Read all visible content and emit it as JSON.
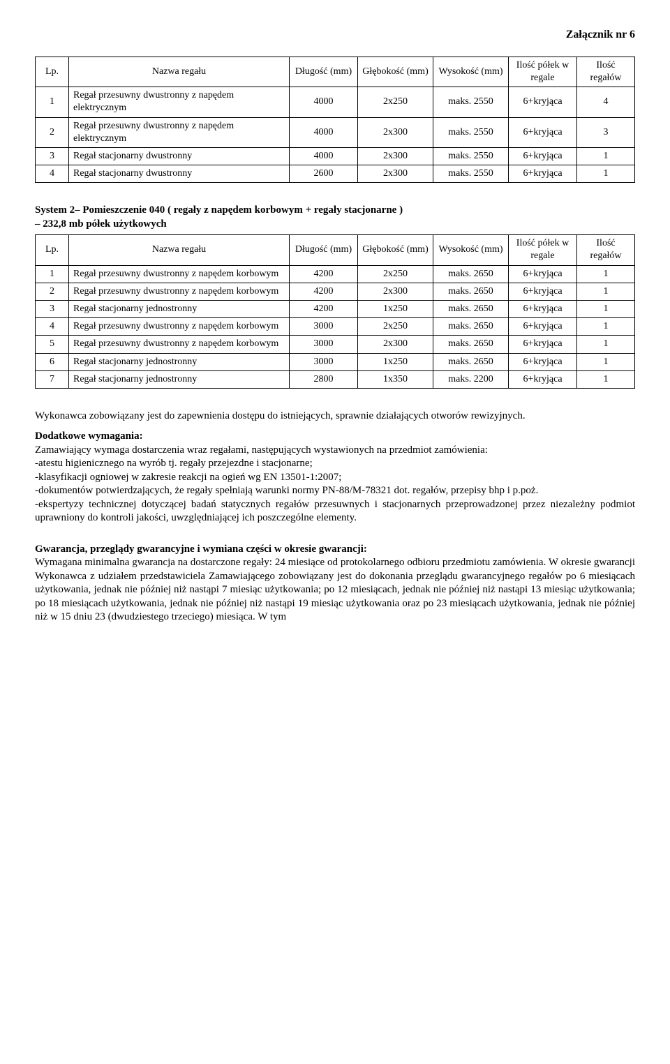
{
  "header": {
    "attachment": "Załącznik nr 6"
  },
  "table1": {
    "columns": [
      "Lp.",
      "Nazwa regału",
      "Długość (mm)",
      "Głębokość (mm)",
      "Wysokość (mm)",
      "Ilość półek w regale",
      "Ilość regałów"
    ],
    "rows": [
      [
        "1",
        "Regał przesuwny dwustronny z napędem elektrycznym",
        "4000",
        "2x250",
        "maks. 2550",
        "6+kryjąca",
        "4"
      ],
      [
        "2",
        "Regał przesuwny dwustronny z napędem elektrycznym",
        "4000",
        "2x300",
        "maks. 2550",
        "6+kryjąca",
        "3"
      ],
      [
        "3",
        "Regał stacjonarny dwustronny",
        "4000",
        "2x300",
        "maks. 2550",
        "6+kryjąca",
        "1"
      ],
      [
        "4",
        "Regał stacjonarny dwustronny",
        "2600",
        "2x300",
        "maks. 2550",
        "6+kryjąca",
        "1"
      ]
    ]
  },
  "section2_heading_line1": "System 2– Pomieszczenie 040 ( regały z napędem korbowym + regały stacjonarne )",
  "section2_heading_line2": "– 232,8 mb półek użytkowych",
  "table2": {
    "columns": [
      "Lp.",
      "Nazwa regału",
      "Długość (mm)",
      "Głębokość (mm)",
      "Wysokość (mm)",
      "Ilość półek w regale",
      "Ilość regałów"
    ],
    "rows": [
      [
        "1",
        "Regał przesuwny dwustronny z napędem korbowym",
        "4200",
        "2x250",
        "maks. 2650",
        "6+kryjąca",
        "1"
      ],
      [
        "2",
        "Regał przesuwny dwustronny z napędem korbowym",
        "4200",
        "2x300",
        "maks. 2650",
        "6+kryjąca",
        "1"
      ],
      [
        "3",
        "Regał stacjonarny jednostronny",
        "4200",
        "1x250",
        "maks. 2650",
        "6+kryjąca",
        "1"
      ],
      [
        "4",
        "Regał przesuwny dwustronny z napędem korbowym",
        "3000",
        "2x250",
        "maks. 2650",
        "6+kryjąca",
        "1"
      ],
      [
        "5",
        "Regał przesuwny dwustronny z napędem korbowym",
        "3000",
        "2x300",
        "maks. 2650",
        "6+kryjąca",
        "1"
      ],
      [
        "6",
        "Regał stacjonarny jednostronny",
        "3000",
        "1x250",
        "maks. 2650",
        "6+kryjąca",
        "1"
      ],
      [
        "7",
        "Regał stacjonarny jednostronny",
        "2800",
        "1x350",
        "maks. 2200",
        "6+kryjąca",
        "1"
      ]
    ]
  },
  "para_contractor": "Wykonawca zobowiązany jest do zapewnienia dostępu do istniejących, sprawnie działających otworów rewizyjnych.",
  "additional_heading": "Dodatkowe wymagania:",
  "additional_intro": "Zamawiający wymaga dostarczenia wraz regałami, następujących wystawionych na przedmiot zamówienia:",
  "additional_items": [
    "-atestu higienicznego na wyrób tj. regały przejezdne i stacjonarne;",
    "-klasyfikacji ogniowej w zakresie reakcji na ogień wg EN 13501-1:2007;",
    "-dokumentów potwierdzających, że regały spełniają warunki normy PN-88/M-78321 dot. regałów, przepisy bhp i p.poż.",
    "-ekspertyzy technicznej dotyczącej badań statycznych regałów przesuwnych i stacjonarnych przeprowadzonej przez niezależny podmiot uprawniony do kontroli jakości, uwzględniającej ich poszczególne elementy."
  ],
  "warranty_heading": "Gwarancja, przeglądy gwarancyjne i wymiana części w okresie gwarancji:",
  "warranty_text": "Wymagana minimalna gwarancja na dostarczone regały: 24 miesiące od protokolarnego odbioru przedmiotu zamówienia. W okresie gwarancji Wykonawca z udziałem przedstawiciela Zamawiającego zobowiązany jest do dokonania przeglądu gwarancyjnego regałów po 6 miesiącach użytkowania, jednak nie później niż nastąpi 7 miesiąc użytkowania; po 12 miesiącach, jednak nie później niż nastąpi 13 miesiąc użytkowania; po 18 miesiącach użytkowania, jednak nie później niż nastąpi 19 miesiąc użytkowania oraz po 23 miesiącach użytkowania, jednak nie później niż w 15 dniu 23 (dwudziestego trzeciego) miesiąca. W tym"
}
